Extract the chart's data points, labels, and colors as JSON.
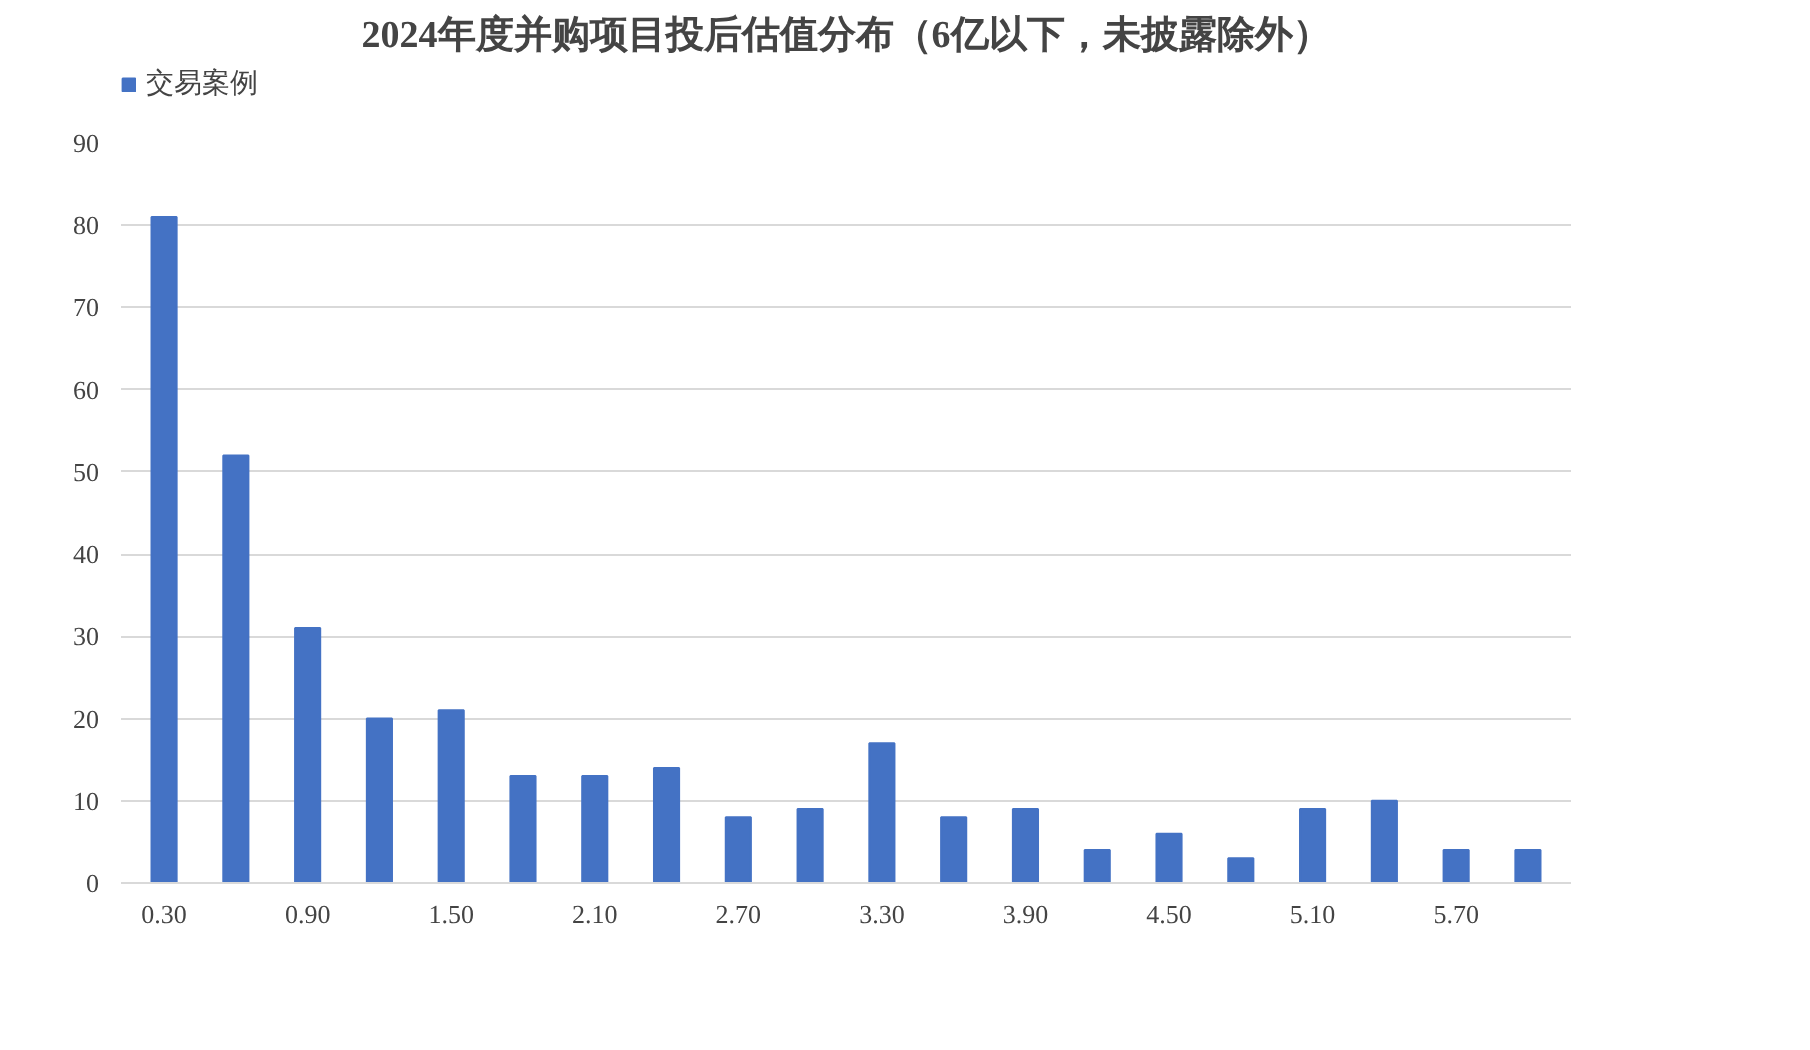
{
  "chart_data": {
    "type": "bar",
    "title": "2024年度并购项目投后估值分布（6亿以下，未披露除外）",
    "categories": [
      "0.30",
      null,
      "0.90",
      null,
      "1.50",
      null,
      "2.10",
      null,
      "2.70",
      null,
      "3.30",
      null,
      "3.90",
      null,
      "4.50",
      null,
      "5.10",
      null,
      "5.70",
      null
    ],
    "series": [
      {
        "name": "交易案例",
        "color": "#4472c4",
        "values": [
          81,
          52,
          31,
          20,
          21,
          13,
          13,
          14,
          8,
          9,
          17,
          8,
          9,
          4,
          6,
          3,
          9,
          10,
          4,
          4
        ]
      }
    ],
    "ylim": [
      0,
      90
    ],
    "yticks": [
      0,
      10,
      20,
      30,
      40,
      50,
      60,
      70,
      80,
      90
    ],
    "grid": "y",
    "legend": "top left"
  }
}
